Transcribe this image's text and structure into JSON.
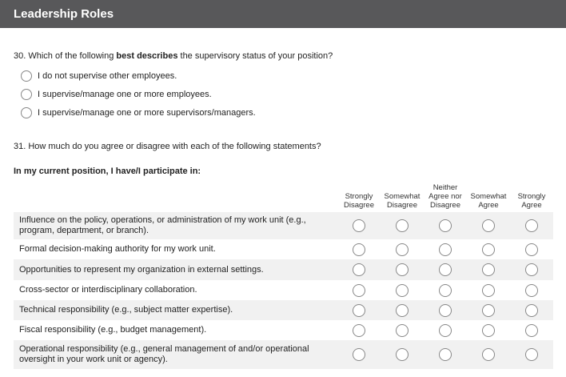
{
  "section_title": "Leadership Roles",
  "q30": {
    "prefix": "30. Which of the following ",
    "bold": "best describes",
    "suffix": " the supervisory status of your position?",
    "options": [
      "I do not supervise other employees.",
      "I supervise/manage one or more employees.",
      "I supervise/manage one or more supervisors/managers."
    ]
  },
  "q31": {
    "text": "31. How much do you agree or disagree with each of the following statements?",
    "subheading": "In my current position, I have/I participate in:",
    "scale": [
      [
        "Strongly",
        "Disagree"
      ],
      [
        "Somewhat",
        "Disagree"
      ],
      [
        "Neither",
        "Agree nor",
        "Disagree"
      ],
      [
        "Somewhat",
        "Agree"
      ],
      [
        "Strongly",
        "Agree"
      ]
    ],
    "statements": [
      "Influence on the policy, operations, or administration of my work unit (e.g., program, department, or branch).",
      "Formal decision-making authority for my work unit.",
      "Opportunities to represent my organization in external settings.",
      "Cross-sector or interdisciplinary collaboration.",
      "Technical responsibility (e.g., subject matter expertise).",
      "Fiscal responsibility (e.g., budget management).",
      "Operational responsibility (e.g., general management of and/or operational oversight in your work unit or agency)."
    ]
  },
  "colors": {
    "header_bg": "#58585a",
    "row_alt": "#f1f1f1"
  }
}
